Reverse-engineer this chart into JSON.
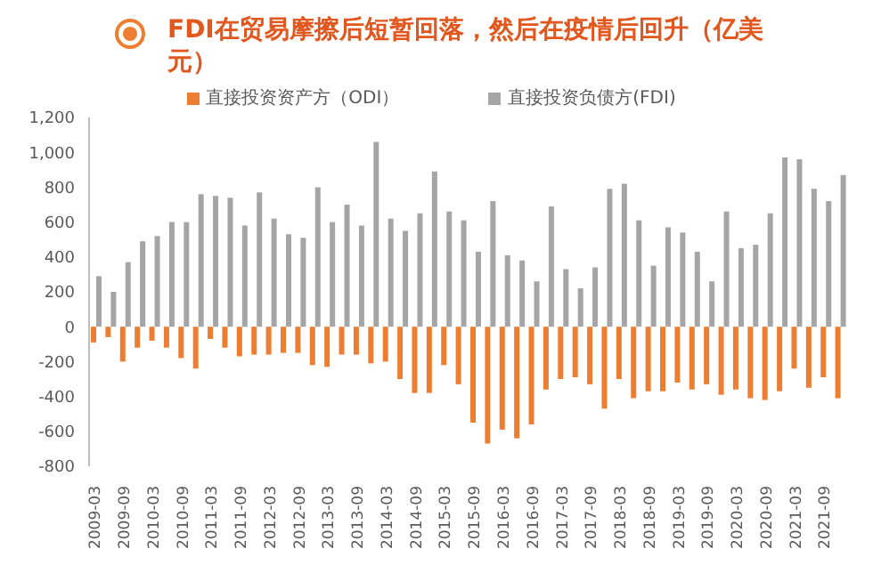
{
  "chart_data": {
    "type": "bar",
    "title": "FDI在贸易摩擦后短暂回落，然后在疫情后回升（亿美元）",
    "categories": [
      "2009-03",
      null,
      "2009-09",
      null,
      "2010-03",
      null,
      "2010-09",
      null,
      "2011-03",
      null,
      "2011-09",
      null,
      "2012-03",
      null,
      "2012-09",
      null,
      "2013-03",
      null,
      "2013-09",
      null,
      "2014-03",
      null,
      "2014-09",
      null,
      "2015-03",
      null,
      "2015-09",
      null,
      "2016-03",
      null,
      "2016-09",
      null,
      "2017-03",
      null,
      "2017-09",
      null,
      "2018-03",
      null,
      "2018-09",
      null,
      "2019-03",
      null,
      "2019-09",
      null,
      "2020-03",
      null,
      "2020-09",
      null,
      "2021-03",
      null,
      "2021-09",
      null
    ],
    "series": [
      {
        "name": "直接投资资产方（ODI）",
        "color": "#ed7d31",
        "values": [
          -90,
          -60,
          -200,
          -120,
          -80,
          -120,
          -180,
          -240,
          -70,
          -120,
          -170,
          -160,
          -160,
          -150,
          -150,
          -220,
          -230,
          -160,
          -160,
          -210,
          -200,
          -300,
          -380,
          -380,
          -220,
          -330,
          -550,
          -670,
          -590,
          -640,
          -560,
          -360,
          -300,
          -290,
          -330,
          -470,
          -300,
          -410,
          -370,
          -370,
          -320,
          -360,
          -330,
          -390,
          -360,
          -410,
          -420,
          -370,
          -240,
          -350,
          -290,
          -410
        ]
      },
      {
        "name": "直接投资负债方(FDI)",
        "color": "#a5a5a5",
        "values": [
          290,
          200,
          370,
          490,
          520,
          600,
          600,
          760,
          750,
          740,
          580,
          770,
          620,
          530,
          510,
          800,
          600,
          700,
          580,
          1060,
          620,
          550,
          650,
          890,
          660,
          610,
          430,
          720,
          410,
          380,
          260,
          690,
          330,
          220,
          340,
          790,
          820,
          610,
          350,
          570,
          540,
          430,
          260,
          660,
          450,
          470,
          650,
          970,
          960,
          790,
          720,
          870
        ]
      }
    ],
    "ylim": [
      -800,
      1200
    ],
    "yticks": [
      -800,
      -600,
      -400,
      -200,
      0,
      200,
      400,
      600,
      800,
      {
        "value": 1000,
        "label": "1,000"
      },
      {
        "value": 1200,
        "label": "1,200"
      }
    ],
    "legend": "top"
  }
}
